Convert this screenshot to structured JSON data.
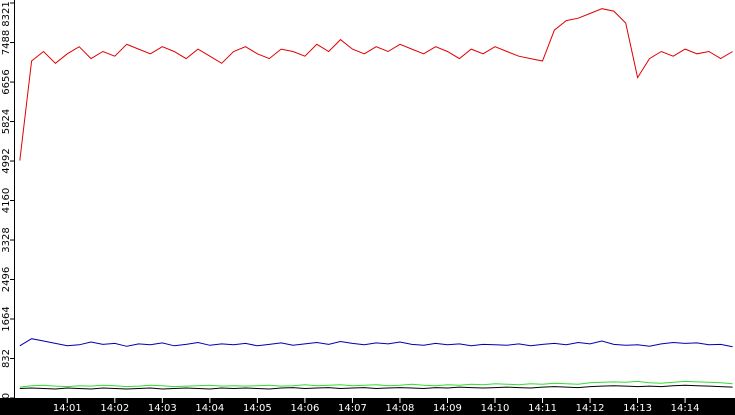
{
  "chart_data": {
    "type": "line",
    "x": [
      0,
      0.25,
      0.5,
      0.75,
      1,
      1.25,
      1.5,
      1.75,
      2,
      2.25,
      2.5,
      2.75,
      3,
      3.25,
      3.5,
      3.75,
      4,
      4.25,
      4.5,
      4.75,
      5,
      5.25,
      5.5,
      5.75,
      6,
      6.25,
      6.5,
      6.75,
      7,
      7.25,
      7.5,
      7.75,
      8,
      8.25,
      8.5,
      8.75,
      9,
      9.25,
      9.5,
      9.75,
      10,
      10.25,
      10.5,
      10.75,
      11,
      11.25,
      11.5,
      11.75,
      12,
      12.25,
      12.5,
      12.75,
      13,
      13.25,
      13.5,
      13.75,
      14,
      14.25,
      14.5,
      14.75,
      15
    ],
    "xlim": [
      -0.1,
      15.05
    ],
    "xticks": [
      {
        "value": 1,
        "label": "14:01"
      },
      {
        "value": 2,
        "label": "14:02"
      },
      {
        "value": 3,
        "label": "14:03"
      },
      {
        "value": 4,
        "label": "14:04"
      },
      {
        "value": 5,
        "label": "14:05"
      },
      {
        "value": 6,
        "label": "14:06"
      },
      {
        "value": 7,
        "label": "14:07"
      },
      {
        "value": 8,
        "label": "14:08"
      },
      {
        "value": 9,
        "label": "14:09"
      },
      {
        "value": 10,
        "label": "14:10"
      },
      {
        "value": 11,
        "label": "14:11"
      },
      {
        "value": 12,
        "label": "14:12"
      },
      {
        "value": 13,
        "label": "14:13"
      },
      {
        "value": 14,
        "label": "14:14"
      }
    ],
    "ylim": [
      0,
      8321
    ],
    "yticks": [
      0,
      832,
      1664,
      2496,
      3328,
      4160,
      4992,
      5824,
      6656,
      7488,
      8321
    ],
    "series": [
      {
        "color": "#e00000",
        "values": [
          5000,
          7100,
          7300,
          7050,
          7250,
          7400,
          7150,
          7300,
          7200,
          7450,
          7350,
          7250,
          7400,
          7300,
          7150,
          7350,
          7200,
          7050,
          7300,
          7400,
          7250,
          7150,
          7350,
          7300,
          7200,
          7450,
          7300,
          7550,
          7350,
          7250,
          7400,
          7300,
          7450,
          7350,
          7250,
          7400,
          7300,
          7150,
          7350,
          7250,
          7400,
          7300,
          7200,
          7150,
          7100,
          7750,
          7950,
          8000,
          8100,
          8200,
          8150,
          7900,
          6750,
          7150,
          7300,
          7200,
          7350,
          7250,
          7300,
          7150,
          7300
        ]
      },
      {
        "color": "#0000b0",
        "values": [
          1100,
          1250,
          1200,
          1150,
          1100,
          1120,
          1180,
          1130,
          1150,
          1090,
          1140,
          1120,
          1160,
          1100,
          1130,
          1170,
          1110,
          1140,
          1120,
          1150,
          1100,
          1130,
          1160,
          1110,
          1140,
          1170,
          1130,
          1190,
          1150,
          1120,
          1160,
          1140,
          1180,
          1130,
          1110,
          1150,
          1120,
          1140,
          1100,
          1130,
          1120,
          1110,
          1140,
          1100,
          1130,
          1150,
          1120,
          1170,
          1140,
          1200,
          1130,
          1110,
          1120,
          1090,
          1140,
          1170,
          1150,
          1160,
          1120,
          1130,
          1080
        ]
      },
      {
        "color": "#33dd33",
        "values": [
          230,
          260,
          270,
          250,
          240,
          260,
          250,
          270,
          260,
          240,
          250,
          270,
          260,
          240,
          250,
          260,
          270,
          250,
          260,
          250,
          260,
          270,
          250,
          260,
          280,
          260,
          270,
          280,
          260,
          270,
          280,
          260,
          270,
          290,
          270,
          260,
          280,
          270,
          290,
          280,
          300,
          290,
          280,
          300,
          290,
          310,
          300,
          290,
          320,
          330,
          340,
          330,
          350,
          320,
          310,
          330,
          350,
          340,
          330,
          320,
          300
        ]
      },
      {
        "color": "#000000",
        "values": [
          200,
          210,
          200,
          190,
          210,
          200,
          190,
          210,
          200,
          190,
          200,
          210,
          190,
          200,
          210,
          200,
          190,
          210,
          200,
          210,
          200,
          190,
          210,
          220,
          200,
          210,
          220,
          200,
          210,
          220,
          200,
          210,
          220,
          210,
          200,
          220,
          210,
          230,
          220,
          210,
          220,
          230,
          220,
          210,
          230,
          240,
          230,
          220,
          240,
          250,
          260,
          250,
          240,
          250,
          240,
          260,
          270,
          260,
          250,
          240,
          230
        ]
      }
    ]
  }
}
